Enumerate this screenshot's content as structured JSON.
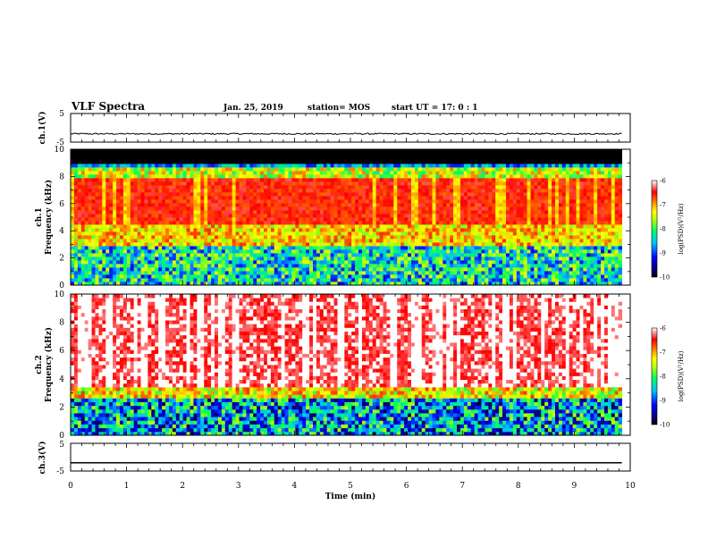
{
  "header": {
    "title": "VLF Spectra",
    "date": "Jan. 25, 2019",
    "station": "station= MOS",
    "start": "start  UT =   17: 0  : 1"
  },
  "chart_data": {
    "type": "heatmap",
    "xlabel": "Time  (min)",
    "xlim": [
      0,
      10
    ],
    "xticks": [
      "0",
      "1",
      "2",
      "3",
      "4",
      "5",
      "6",
      "7",
      "8",
      "9",
      "10"
    ],
    "panels": [
      {
        "id": "ch1-waveform",
        "type": "line",
        "ylabel": "ch.1(V)",
        "ylim": [
          -5,
          5
        ],
        "yticks": [
          "5",
          "-5"
        ],
        "level": -2.1,
        "noise": 0.25,
        "tmax": 9.85
      },
      {
        "id": "ch1-spectrogram",
        "type": "heatmap",
        "ylabel_top": "ch.1",
        "ylabel": "Frequency  (kHz)",
        "ylim": [
          0,
          10
        ],
        "yticks": [
          "0",
          "2",
          "4",
          "6",
          "8",
          "10"
        ],
        "tmax": 9.85,
        "cutoff_khz": 9.0,
        "saturated_band_khz": [
          4.5,
          7.8
        ],
        "colorbar": {
          "label": "log(PSD)(V²/Hz)",
          "range": [
            -10,
            -6
          ],
          "ticks": [
            "-6",
            "-7",
            "-8",
            "-9",
            "-10"
          ]
        }
      },
      {
        "id": "ch2-spectrogram",
        "type": "heatmap",
        "ylabel_top": "ch.2",
        "ylabel": "Frequency  (kHz)",
        "ylim": [
          0,
          10
        ],
        "yticks": [
          "0",
          "2",
          "4",
          "6",
          "8",
          "10"
        ],
        "tmax": 9.85,
        "saturated_band_khz": [
          3.5,
          10
        ],
        "colorbar": {
          "label": "log(PSD)(V²/Hz)",
          "range": [
            -10,
            -6
          ],
          "ticks": [
            "-6",
            "-7",
            "-8",
            "-9",
            "-10"
          ]
        }
      },
      {
        "id": "ch3-waveform",
        "type": "line",
        "ylabel": "ch.3(V)",
        "ylim": [
          -5,
          5
        ],
        "yticks": [
          "5",
          "-5"
        ],
        "level": -2.0,
        "noise": 0.0,
        "tmax": 9.85
      }
    ]
  }
}
